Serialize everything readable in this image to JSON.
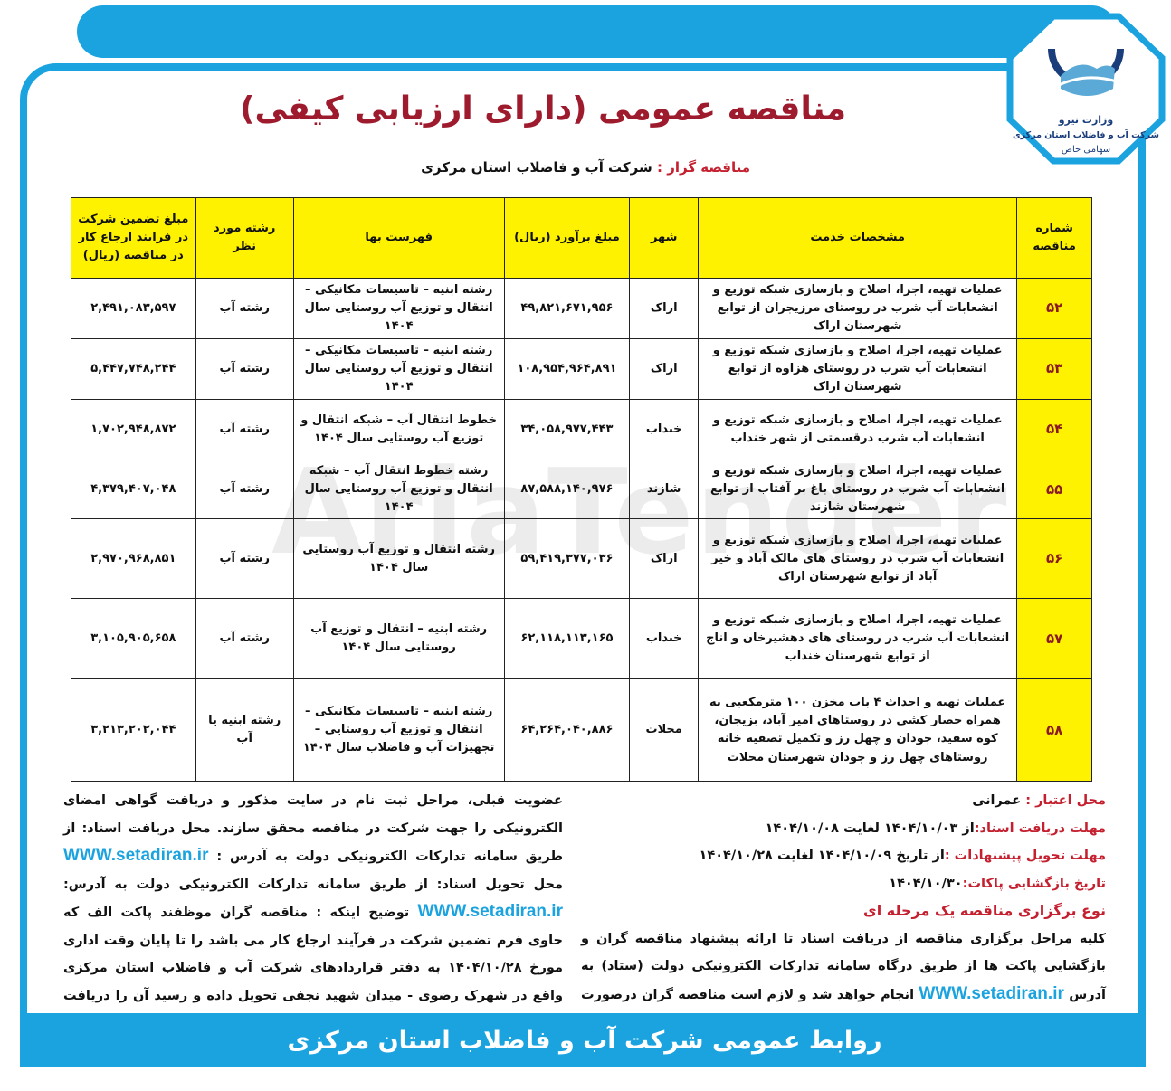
{
  "logo": {
    "ministry": "وزارت نیرو",
    "company": "شرکت آب و فاضلاب استان مرکزی",
    "type": "سهامی خاص",
    "colors": {
      "primary": "#1ba3e0",
      "dark": "#1a3d7c"
    }
  },
  "title": "مناقصه عمومی (دارای ارزیابی کیفی)",
  "organizer": {
    "label": "مناقصه گزار :",
    "value": "شرکت آب و فاضلاب استان مرکزی"
  },
  "watermark": "AriaTender",
  "table": {
    "headers": [
      "شماره مناقصه",
      "مشخصات خدمت",
      "شهر",
      "مبلغ برآورد (ریال)",
      "فهرست بها",
      "رشته مورد نظر",
      "مبلغ تضمین شرکت در فرایند ارجاع کار در مناقصه (ریال)"
    ],
    "rows": [
      {
        "no": "۵۲",
        "service": "عملیات تهیه، اجرا، اصلاح و بازسازی شبکه توزیع و انشعابات آب شرب در روستای مرزیجران از توابع شهرستان اراک",
        "city": "اراک",
        "estimate": "۴۹,۸۲۱,۶۷۱,۹۵۶",
        "pricelist": "رشته ابنیه – تاسیسات مکانیکی – انتقال و توزیع آب روستایی سال ۱۴۰۴",
        "field": "رشته آب",
        "guarantee": "۲,۴۹۱,۰۸۳,۵۹۷"
      },
      {
        "no": "۵۳",
        "service": "عملیات تهیه، اجرا، اصلاح و بازسازی شبکه توزیع و انشعابات آب شرب در روستای هزاوه از توابع شهرستان اراک",
        "city": "اراک",
        "estimate": "۱۰۸,۹۵۴,۹۶۴,۸۹۱",
        "pricelist": "رشته ابنیه – تاسیسات مکانیکی – انتقال و توزیع آب روستایی سال ۱۴۰۴",
        "field": "رشته آب",
        "guarantee": "۵,۴۴۷,۷۴۸,۲۴۴"
      },
      {
        "no": "۵۴",
        "service": "عملیات تهیه، اجرا، اصلاح و بازسازی شبکه توزیع و انشعابات آب شرب درقسمتی از شهر خنداب",
        "city": "خنداب",
        "estimate": "۳۴,۰۵۸,۹۷۷,۴۴۳",
        "pricelist": "خطوط انتقال آب – شبکه انتقال و توزیع آب روستایی سال ۱۴۰۴",
        "field": "رشته آب",
        "guarantee": "۱,۷۰۲,۹۴۸,۸۷۲"
      },
      {
        "no": "۵۵",
        "service": "عملیات تهیه، اجرا، اصلاح و بازسازی شبکه توزیع و انشعابات آب شرب در روستای باغ بر آفتاب از توابع شهرستان شازند",
        "city": "شازند",
        "estimate": "۸۷,۵۸۸,۱۴۰,۹۷۶",
        "pricelist": "رشته خطوط انتقال آب – شبکه انتقال و توزیع آب روستایی سال ۱۴۰۴",
        "field": "رشته آب",
        "guarantee": "۴,۳۷۹,۴۰۷,۰۴۸"
      },
      {
        "no": "۵۶",
        "service": "عملیات تهیه، اجرا، اصلاح و بازسازی شبکه توزیع و انشعابات آب شرب در روستای های مالک آباد و خیر آباد از توابع شهرستان اراک",
        "city": "اراک",
        "estimate": "۵۹,۴۱۹,۳۷۷,۰۳۶",
        "pricelist": "رشته انتقال و توزیع آب روستایی سال ۱۴۰۴",
        "field": "رشته آب",
        "guarantee": "۲,۹۷۰,۹۶۸,۸۵۱"
      },
      {
        "no": "۵۷",
        "service": "عملیات تهیه، اجرا، اصلاح و بازسازی شبکه توزیع و انشعابات آب شرب در روستای های دهشیرخان و اناج از توابع شهرستان خنداب",
        "city": "خنداب",
        "estimate": "۶۲,۱۱۸,۱۱۳,۱۶۵",
        "pricelist": "رشته ابنیه – انتقال و توزیع آب روستایی سال ۱۴۰۴",
        "field": "رشته آب",
        "guarantee": "۳,۱۰۵,۹۰۵,۶۵۸"
      },
      {
        "no": "۵۸",
        "service": "عملیات تهیه و احداث ۴ باب مخزن ۱۰۰ مترمکعبی به همراه حصار کشی در روستاهای امیر آباد، بزیجان، کوه سفید، جودان و چهل رز و تکمیل تصفیه خانه روستاهای چهل رز و جودان شهرستان محلات",
        "city": "محلات",
        "estimate": "۶۴,۲۶۴,۰۴۰,۸۸۶",
        "pricelist": "رشته ابنیه – تاسیسات مکانیکی – انتقال و توزیع آب روستایی – تجهیزات آب و فاضلاب سال ۱۴۰۴",
        "field": "رشته ابنیه یا آب",
        "guarantee": "۳,۲۱۳,۲۰۲,۰۴۴"
      }
    ]
  },
  "details": {
    "credit": {
      "label": "محل اعتبار :",
      "value": "عمرانی"
    },
    "doc_deadline": {
      "label": "مهلت دریافت اسناد:",
      "value": "از ۱۴۰۴/۱۰/۰۳ لغایت ۱۴۰۴/۱۰/۰۸"
    },
    "bid_deadline": {
      "label": "مهلت تحویل پیشنهادات :",
      "value": "از تاریخ ۱۴۰۴/۱۰/۰۹ لغایت ۱۴۰۴/۱۰/۲۸"
    },
    "opening": {
      "label": "تاریخ بازگشایی پاکات:",
      "value": "۱۴۰۴/۱۰/۳۰"
    },
    "type": "نوع برگزاری مناقصه یک مرحله ای",
    "para_right_1": "کلیه مراحل برگزاری مناقصه از دریافت اسناد تا ارائه پیشنهاد مناقصه گران و بازگشایی پاکت ها از طریق درگاه سامانه تدارکات الکترونیکی دولت (ستاد) به آدرس",
    "url": "WWW.setadiran.ir",
    "para_right_2": "انجام خواهد شد و لازم است مناقصه گران درصورت عدم",
    "para_left_1": "عضویت قبلی، مراحل ثبت نام در سایت مذکور و دریافت گواهی امضای الکترونیکی را جهت شرکت در مناقصه محقق سازند. محل دریافت اسناد: از طریق سامانه تدارکات الکترونیکی دولت به آدرس :",
    "para_left_2": "محل تحویل اسناد: از طریق سامانه تدارکات الکترونیکی دولت به آدرس:",
    "para_left_3": "توضیح اینکه : مناقصه گران موظفند پاکت الف که حاوی فرم تضمین شرکت در فرآیند ارجاع کار می باشد را تا پایان وقت اداری مورخ ۱۴۰۴/۱۰/۲۸ به دفتر قراردادهای شرکت آب و فاضلاب استان مرکزی واقع در شهرک رضوی - میدان شهید نجفی تحویل داده و رسید آن را دریافت نمایند."
  },
  "footer": "روابط عمومی شرکت آب و فاضلاب استان مرکزی"
}
